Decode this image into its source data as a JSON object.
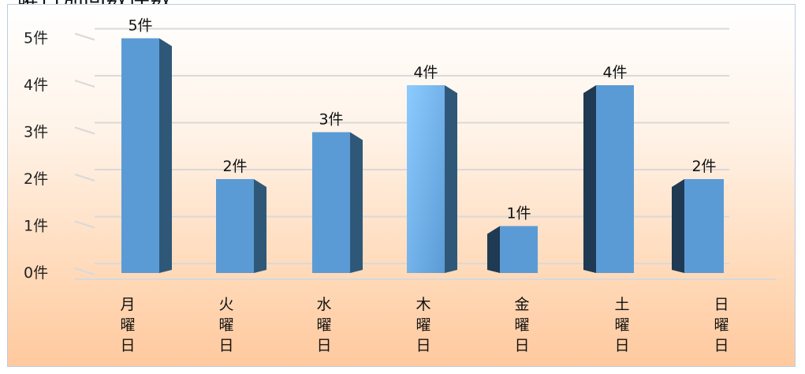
{
  "title": "曜日別回数件数",
  "chart_data": {
    "type": "bar",
    "title": "曜日別回数件数",
    "categories": [
      "月曜日",
      "火曜日",
      "水曜日",
      "木曜日",
      "金曜日",
      "土曜日",
      "日曜日"
    ],
    "values": [
      5,
      2,
      3,
      4,
      1,
      4,
      2
    ],
    "value_labels": [
      "5件",
      "2件",
      "3件",
      "4件",
      "1件",
      "4件",
      "2件"
    ],
    "y_ticks": [
      "0件",
      "1件",
      "2件",
      "3件",
      "4件",
      "5件"
    ],
    "ylim": [
      0,
      5
    ],
    "grid": true,
    "legend": "none",
    "colors": {
      "bar_front": "#5b9bd5",
      "bar_front_highlight": "#82bdf0",
      "bar_side": "#2f5878",
      "bar_side_dark": "#1f3a52",
      "grid": "#d9d9d9"
    }
  }
}
